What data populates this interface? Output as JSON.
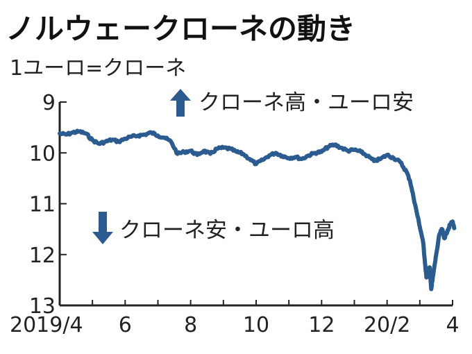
{
  "chart_data": {
    "type": "line",
    "title": "ノルウェークローネの動き",
    "subtitle": "1ユーロ=クローネ",
    "y_inverted": true,
    "ylim": [
      9,
      13
    ],
    "yticks": [
      "9",
      "10",
      "11",
      "12",
      "13"
    ],
    "xticks": [
      {
        "label": "2019/4",
        "x": 0
      },
      {
        "label": "6",
        "x": 2
      },
      {
        "label": "8",
        "x": 4
      },
      {
        "label": "10",
        "x": 6
      },
      {
        "label": "12",
        "x": 8
      },
      {
        "label": "20/2",
        "x": 10
      },
      {
        "label": "4",
        "x": 12
      }
    ],
    "annotations": {
      "up": "クローネ高・ユーロ安",
      "down": "クローネ安・ユーロ高"
    },
    "colors": {
      "line": "#2b5b8f",
      "arrow": "#2b5b8f",
      "axis": "#222222"
    },
    "series": [
      {
        "points": [
          [
            0.0,
            9.62
          ],
          [
            0.2,
            9.64
          ],
          [
            0.4,
            9.6
          ],
          [
            0.6,
            9.58
          ],
          [
            0.8,
            9.62
          ],
          [
            1.0,
            9.75
          ],
          [
            1.2,
            9.82
          ],
          [
            1.4,
            9.78
          ],
          [
            1.6,
            9.74
          ],
          [
            1.8,
            9.78
          ],
          [
            2.0,
            9.72
          ],
          [
            2.2,
            9.68
          ],
          [
            2.4,
            9.66
          ],
          [
            2.6,
            9.64
          ],
          [
            2.8,
            9.6
          ],
          [
            3.0,
            9.66
          ],
          [
            3.2,
            9.7
          ],
          [
            3.4,
            9.78
          ],
          [
            3.6,
            10.02
          ],
          [
            3.8,
            9.98
          ],
          [
            4.0,
            9.96
          ],
          [
            4.2,
            10.04
          ],
          [
            4.4,
            9.96
          ],
          [
            4.6,
            10.02
          ],
          [
            4.8,
            9.92
          ],
          [
            5.0,
            9.9
          ],
          [
            5.2,
            9.92
          ],
          [
            5.4,
            9.98
          ],
          [
            5.6,
            10.02
          ],
          [
            5.8,
            10.12
          ],
          [
            6.0,
            10.22
          ],
          [
            6.2,
            10.14
          ],
          [
            6.4,
            10.05
          ],
          [
            6.6,
            10.0
          ],
          [
            6.8,
            10.06
          ],
          [
            7.0,
            10.1
          ],
          [
            7.2,
            10.08
          ],
          [
            7.4,
            10.12
          ],
          [
            7.6,
            10.05
          ],
          [
            7.8,
            10.0
          ],
          [
            8.0,
            9.98
          ],
          [
            8.2,
            9.88
          ],
          [
            8.4,
            9.84
          ],
          [
            8.6,
            9.9
          ],
          [
            8.8,
            9.96
          ],
          [
            9.0,
            9.94
          ],
          [
            9.2,
            9.98
          ],
          [
            9.4,
            10.06
          ],
          [
            9.6,
            10.16
          ],
          [
            9.8,
            10.12
          ],
          [
            10.0,
            10.04
          ],
          [
            10.2,
            10.1
          ],
          [
            10.4,
            10.18
          ],
          [
            10.6,
            10.38
          ],
          [
            10.7,
            10.55
          ],
          [
            10.8,
            10.85
          ],
          [
            10.9,
            11.15
          ],
          [
            11.0,
            11.45
          ],
          [
            11.1,
            11.75
          ],
          [
            11.15,
            12.1
          ],
          [
            11.2,
            12.45
          ],
          [
            11.3,
            12.25
          ],
          [
            11.35,
            12.68
          ],
          [
            11.42,
            12.35
          ],
          [
            11.5,
            12.0
          ],
          [
            11.6,
            11.6
          ],
          [
            11.68,
            11.5
          ],
          [
            11.75,
            11.68
          ],
          [
            11.85,
            11.52
          ],
          [
            11.92,
            11.42
          ],
          [
            12.0,
            11.35
          ],
          [
            12.05,
            11.48
          ]
        ]
      }
    ]
  }
}
